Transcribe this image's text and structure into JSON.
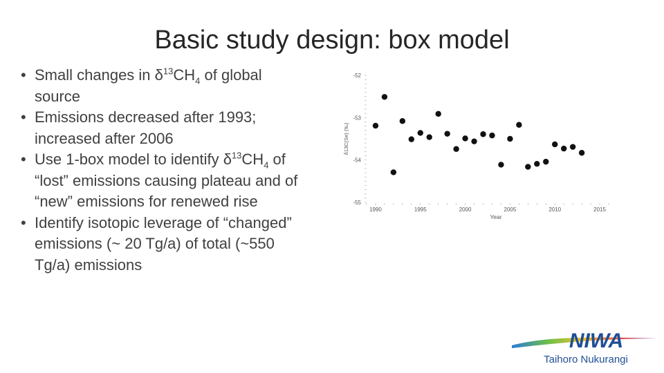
{
  "slide": {
    "title": "Basic study design: box model",
    "bullets": [
      {
        "parts": [
          {
            "t": "Small changes in δ"
          },
          {
            "t": "13",
            "sup": true
          },
          {
            "t": "CH"
          },
          {
            "t": "4",
            "sub": true
          },
          {
            "t": " of global source"
          }
        ]
      },
      {
        "parts": [
          {
            "t": "Emissions decreased after 1993; increased after 2006"
          }
        ]
      },
      {
        "parts": [
          {
            "t": "Use 1-box model to identify δ"
          },
          {
            "t": "13",
            "sup": true
          },
          {
            "t": "CH"
          },
          {
            "t": "4",
            "sub": true
          },
          {
            "t": " of “lost” emissions causing plateau and of “new” emissions for renewed rise"
          }
        ]
      },
      {
        "parts": [
          {
            "t": "Identify isotopic leverage of “changed” emissions (~ 20 Tg/a) of total (~550 Tg/a) emissions"
          }
        ]
      }
    ]
  },
  "chart_data": {
    "type": "scatter",
    "xlabel": "Year",
    "ylabel": "δ13C(Se) (‰)",
    "xlim": [
      1989,
      2016
    ],
    "ylim": [
      -55.0,
      -52.0
    ],
    "xticks": [
      1990,
      1995,
      2000,
      2005,
      2010,
      2015
    ],
    "yticks": [
      -52,
      -53,
      -54,
      -55
    ],
    "grid": false,
    "x": [
      1990,
      1991,
      1992,
      1993,
      1994,
      1995,
      1996,
      1997,
      1998,
      1999,
      2000,
      2001,
      2002,
      2003,
      2004,
      2005,
      2006,
      2007,
      2008,
      2009,
      2010,
      2011,
      2012,
      2013
    ],
    "y": [
      -53.19,
      -52.51,
      -54.29,
      -53.08,
      -53.51,
      -53.36,
      -53.46,
      -52.91,
      -53.38,
      -53.74,
      -53.49,
      -53.56,
      -53.39,
      -53.42,
      -54.11,
      -53.5,
      -53.17,
      -54.16,
      -54.09,
      -54.04,
      -53.63,
      -53.73,
      -53.69,
      -53.83
    ]
  },
  "logo": {
    "wordmark": "NIWA",
    "tagline": "Taihoro Nukurangi",
    "swoosh_colors": [
      "#2a7bd8",
      "#6cc04a",
      "#f2c12e",
      "#e94b3c",
      "#8e44ad"
    ]
  }
}
